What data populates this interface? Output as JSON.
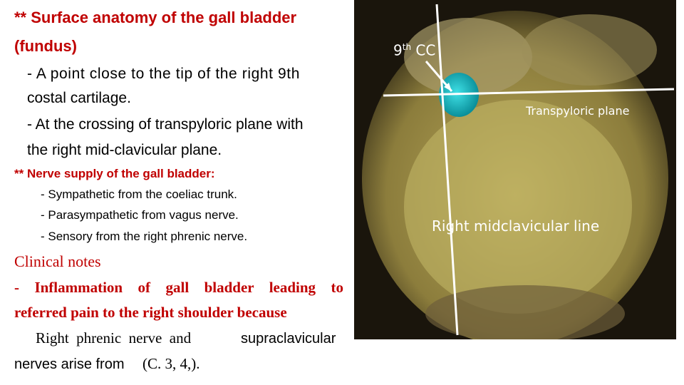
{
  "heading": {
    "lines": [
      "** Surface anatomy of the gall bladder",
      "(fundus)"
    ]
  },
  "points": [
    "- A point close to the tip of the right 9th",
    "costal cartilage.",
    "- At the crossing of transpyloric plane with",
    "the right mid-clavicular plane."
  ],
  "nerve": {
    "title": "** Nerve supply of the gall bladder:",
    "items": [
      "- Sympathetic from the coeliac trunk.",
      "- Parasympathetic from vagus nerve.",
      "- Sensory from the right phrenic nerve."
    ]
  },
  "clinical": {
    "title": "Clinical notes",
    "lines": [
      "- Inflammation of  gall bladder leading to",
      "referred pain to the right shoulder because"
    ],
    "line3": [
      "Right  phrenic  nerve  and",
      "supraclavicular"
    ],
    "line4": [
      "nerves arise from",
      "(C. 3, 4,)."
    ]
  },
  "image": {
    "labels": {
      "cc_number": "9",
      "cc_sup": "th",
      "cc_rest": "CC",
      "transpyloric": "Transpyloric plane",
      "midclavicular": "Right midclavicular line"
    }
  }
}
